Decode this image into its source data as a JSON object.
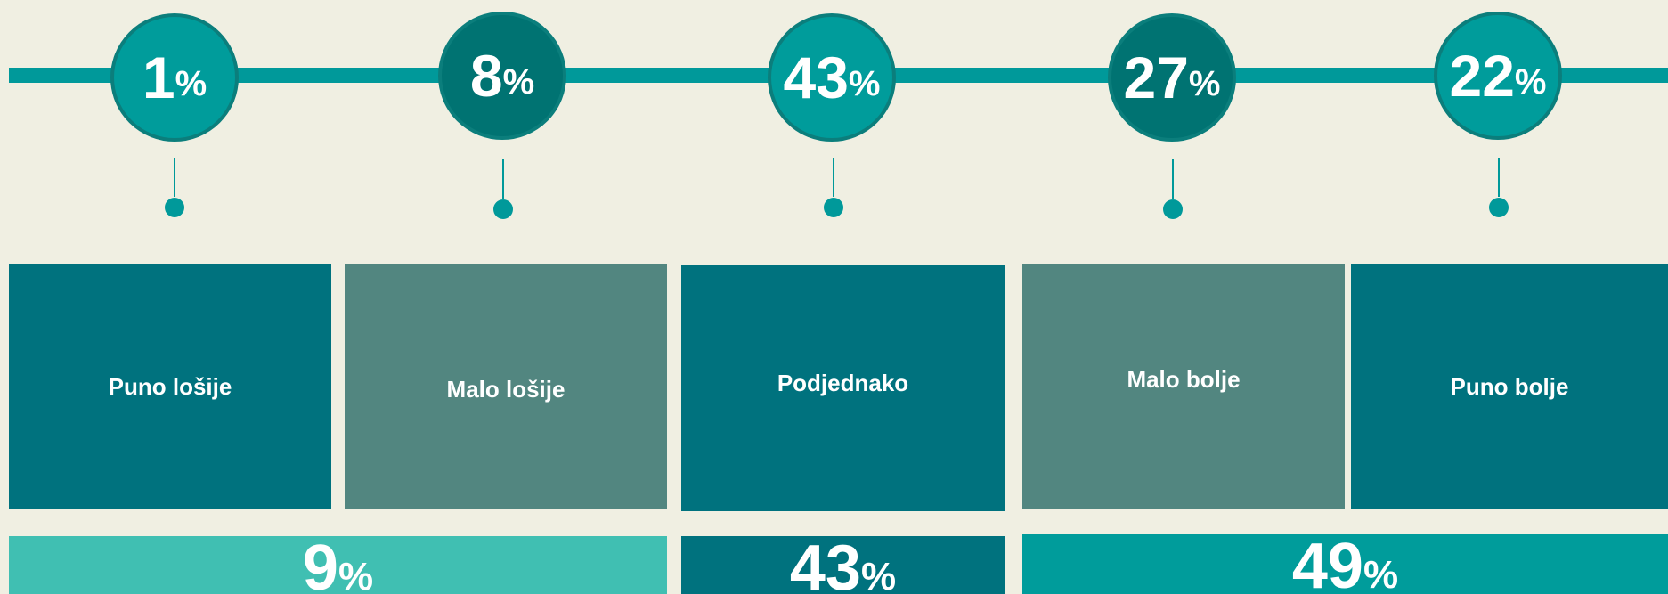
{
  "steps": [
    {
      "number": 1,
      "unit": "%"
    },
    {
      "number": 8,
      "unit": "%"
    },
    {
      "number": 43,
      "unit": "%"
    },
    {
      "number": 27,
      "unit": "%"
    },
    {
      "number": 22,
      "unit": "%"
    }
  ],
  "categories": [
    "Puno lošije",
    "Malo lošije",
    "Podjednako",
    "Malo bolje",
    "Puno bolje"
  ],
  "groups": [
    {
      "number": 9,
      "unit": "%"
    },
    {
      "number": 43,
      "unit": "%"
    },
    {
      "number": 49,
      "unit": "%"
    }
  ]
}
